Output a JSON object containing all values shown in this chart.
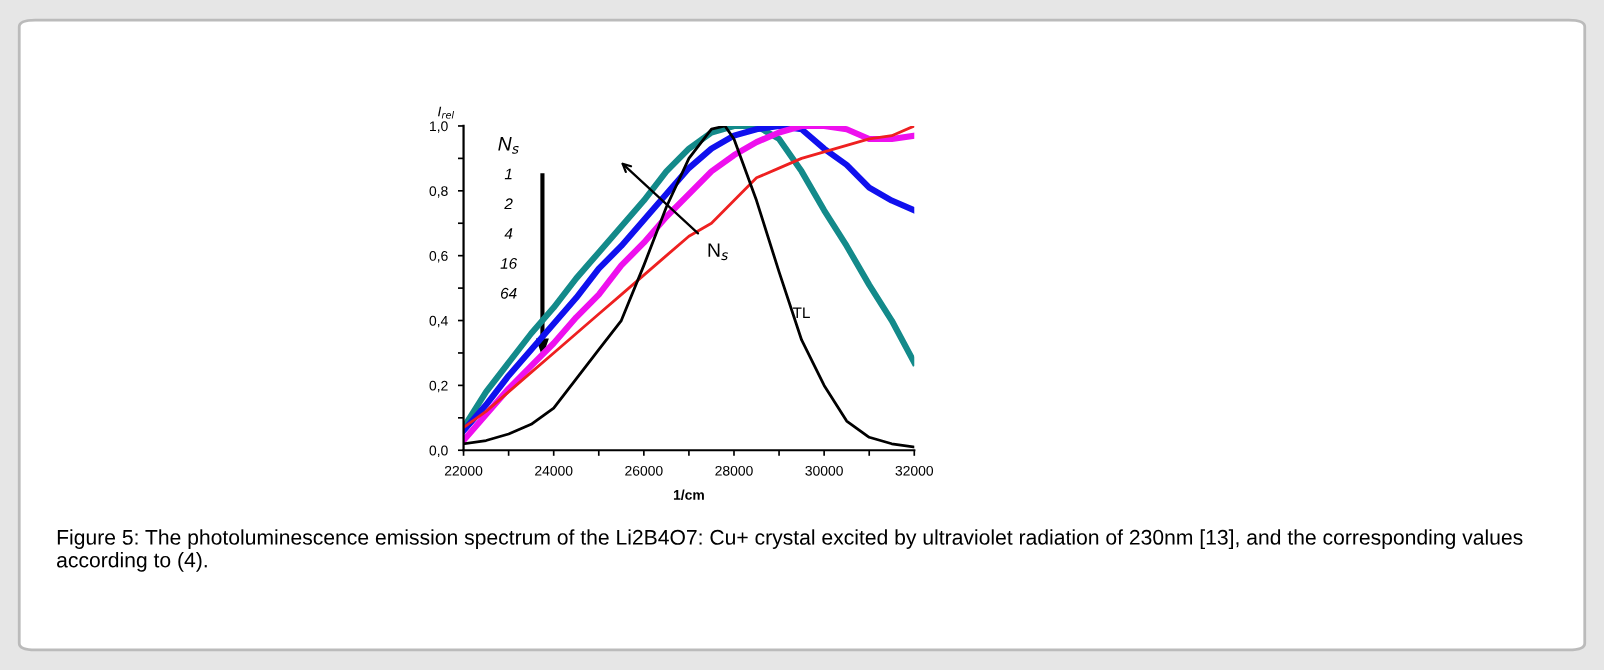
{
  "chart_data": {
    "type": "line",
    "xlabel": "1/cm",
    "ylabel": "I$_{rel}$",
    "x": [
      22000,
      22500,
      23000,
      23500,
      24000,
      24500,
      25000,
      25500,
      26000,
      26500,
      27000,
      27500,
      28000,
      28500,
      29000,
      29500,
      30000,
      30500,
      31000,
      31500,
      32000
    ],
    "series": [
      {
        "color": "#138a8a",
        "values": [
          0.07,
          0.18,
          0.27,
          0.36,
          0.44,
          0.53,
          0.61,
          0.69,
          0.77,
          0.86,
          0.93,
          0.98,
          1.0,
          1.0,
          0.96,
          0.86,
          0.74,
          0.63,
          0.51,
          0.4,
          0.27
        ]
      },
      {
        "color": "#1010ee",
        "values": [
          0.06,
          0.14,
          0.23,
          0.31,
          0.39,
          0.47,
          0.56,
          0.63,
          0.71,
          0.79,
          0.87,
          0.93,
          0.97,
          0.99,
          1.0,
          0.99,
          0.93,
          0.88,
          0.81,
          0.77,
          0.74
        ]
      },
      {
        "color": "#ee10ee",
        "values": [
          0.03,
          0.11,
          0.19,
          0.26,
          0.33,
          0.41,
          0.48,
          0.57,
          0.64,
          0.72,
          0.79,
          0.86,
          0.91,
          0.95,
          0.98,
          1.0,
          1.0,
          0.99,
          0.96,
          0.96,
          0.97
        ]
      },
      {
        "color": "#ee2020",
        "values": [
          0.07,
          0.12,
          0.18,
          0.24,
          0.3,
          0.36,
          0.42,
          0.48,
          0.54,
          0.6,
          0.66,
          0.7,
          0.77,
          0.84,
          0.87,
          0.9,
          0.92,
          0.94,
          0.96,
          0.97,
          1.0
        ]
      },
      {
        "color": "#000000",
        "x": [
          22000,
          22500,
          23000,
          23500,
          24000,
          24500,
          25000,
          25500,
          26000,
          26500,
          27000,
          27500,
          27800,
          28000,
          28500,
          29000,
          29500,
          30000,
          30500,
          31000,
          31500,
          32000
        ],
        "values": [
          0.02,
          0.03,
          0.05,
          0.08,
          0.13,
          0.22,
          0.31,
          0.4,
          0.57,
          0.75,
          0.9,
          0.99,
          1.0,
          0.96,
          0.77,
          0.55,
          0.34,
          0.2,
          0.09,
          0.04,
          0.02,
          0.01
        ]
      }
    ],
    "xlim": [
      22000,
      32000
    ],
    "xticks": [
      22000,
      {
        "value": 23000,
        "label": null
      },
      24000,
      {
        "value": 25000,
        "label": null
      },
      26000,
      {
        "value": 27000,
        "label": null
      },
      28000,
      {
        "value": 29000,
        "label": null
      },
      30000,
      {
        "value": 31000,
        "label": null
      },
      32000
    ],
    "ylim": [
      0,
      1.0
    ],
    "yticks": [
      {
        "value": 0,
        "label": "0,0"
      },
      {
        "value": 0.1,
        "label": null
      },
      {
        "value": 0.2,
        "label": "0,2"
      },
      {
        "value": 0.3,
        "label": null
      },
      {
        "value": 0.4,
        "label": "0,4"
      },
      {
        "value": 0.5,
        "label": null
      },
      {
        "value": 0.6,
        "label": "0,6"
      },
      {
        "value": 0.7,
        "label": null
      },
      {
        "value": 0.8,
        "label": "0,8"
      },
      {
        "value": 0.9,
        "label": null
      },
      {
        "value": 1.0,
        "label": "1,0"
      }
    ],
    "grid": false,
    "annotations": [
      "N$_{s}$",
      "1",
      "2",
      "4",
      "16",
      "64",
      "N$_{s}$",
      "TL",
      "Figure 5: The photoluminescence emission spectrum of the Li2B4O7: Cu+ crystal excited by ultraviolet radiation of 230nm [13], and the corresponding values according to (4)."
    ]
  }
}
